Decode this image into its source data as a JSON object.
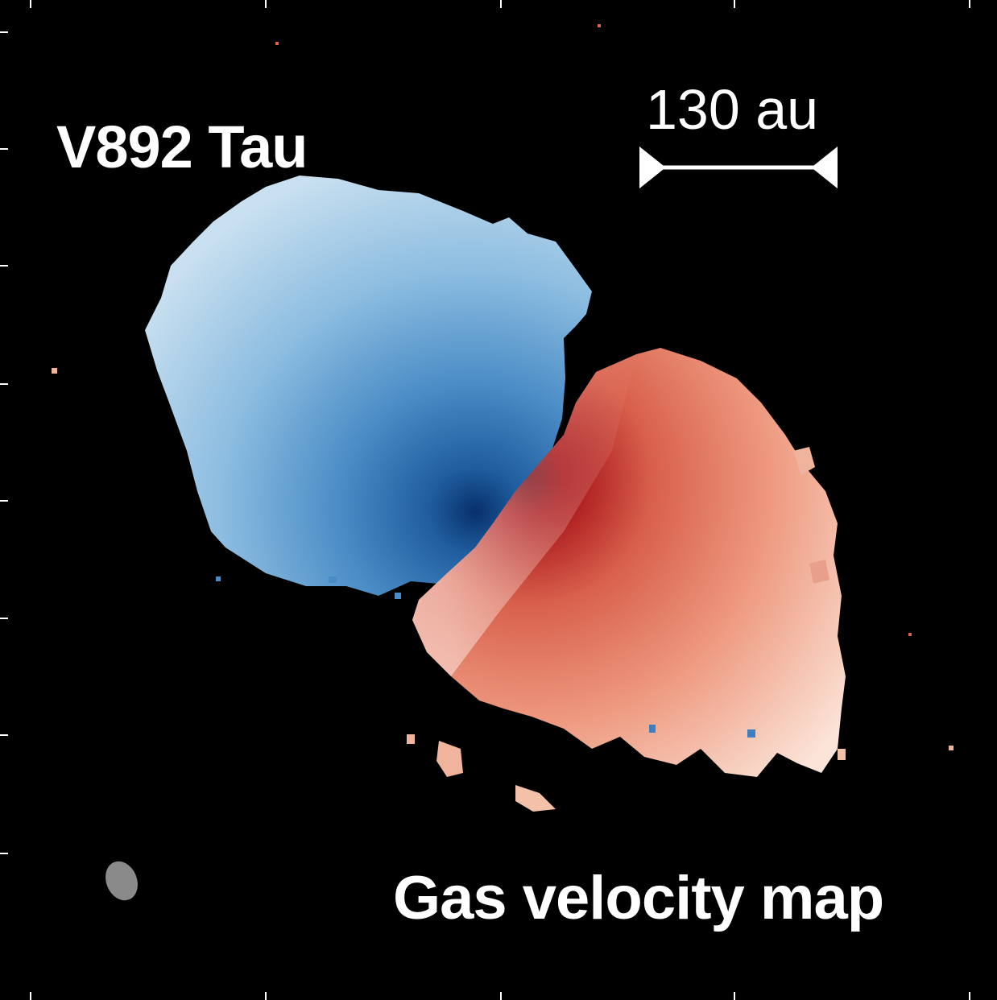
{
  "figure": {
    "object_name": "V892 Tau",
    "scale_bar_label": "130 au",
    "map_title": "Gas velocity map"
  },
  "colors": {
    "background": "#000000",
    "blueshift_dark": "#08306b",
    "blueshift_mid": "#4a8cc6",
    "blueshift_light": "#c9e0f0",
    "redshift_dark": "#67000d",
    "redshift_mid": "#d8604c",
    "redshift_light": "#fbe4d8",
    "beam": "#8a8a8a",
    "text": "#ffffff"
  }
}
